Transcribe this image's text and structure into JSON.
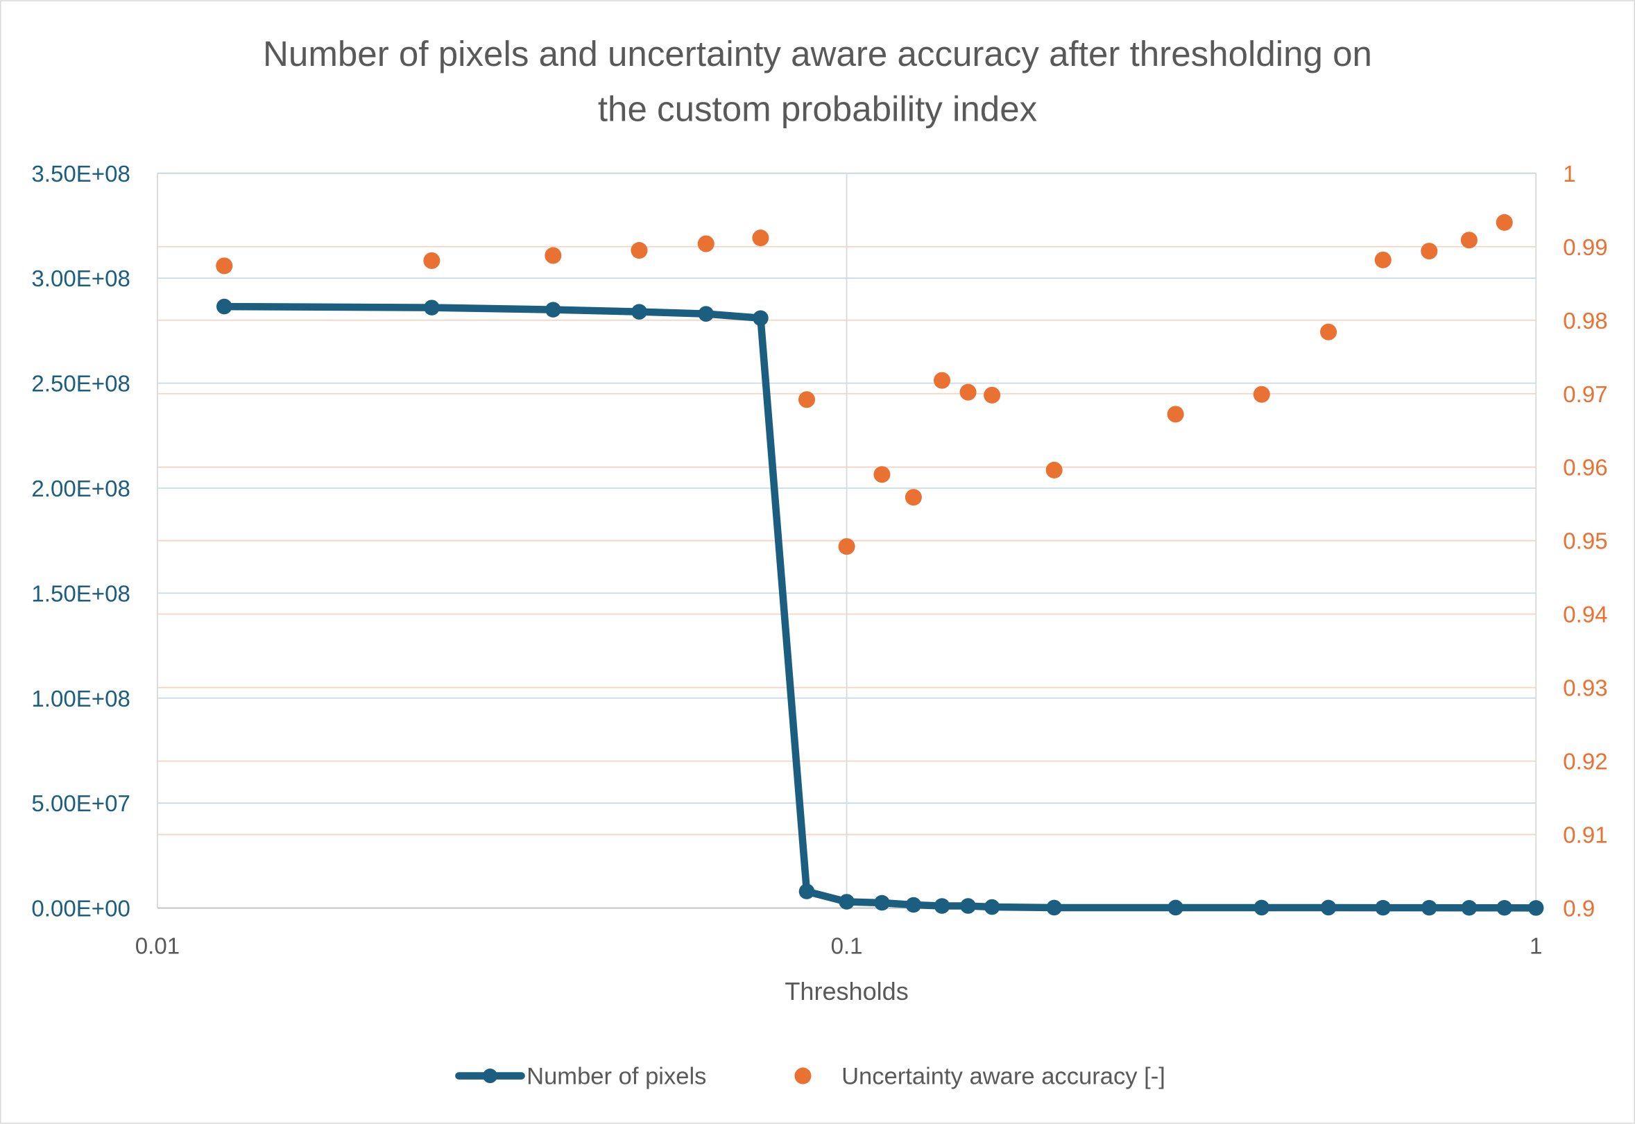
{
  "chart_data": {
    "type": "line",
    "title_lines": [
      "Number of pixels and uncertainty aware accuracy after thresholding on",
      "the custom probability index"
    ],
    "xlabel": "Thresholds",
    "xscale": "log",
    "xlim": [
      0.01,
      1
    ],
    "x_ticks": [
      "0.01",
      "0.1",
      "1"
    ],
    "y_left_lim": [
      0,
      350000000
    ],
    "y_left_ticks": [
      "0.00E+00",
      "5.00E+07",
      "1.00E+08",
      "1.50E+08",
      "2.00E+08",
      "2.50E+08",
      "3.00E+08",
      "3.50E+08"
    ],
    "y_right_lim": [
      0.9,
      1
    ],
    "y_right_ticks": [
      "0.9",
      "0.91",
      "0.92",
      "0.93",
      "0.94",
      "0.95",
      "0.96",
      "0.97",
      "0.98",
      "0.99",
      "1"
    ],
    "grid": true,
    "legend_position": "bottom",
    "x": [
      0.0125,
      0.025,
      0.0375,
      0.05,
      0.0625,
      0.075,
      0.0875,
      0.1,
      0.1125,
      0.125,
      0.1375,
      0.15,
      0.1625,
      0.2,
      0.3,
      0.4,
      0.5,
      0.6,
      0.7,
      0.8,
      0.9,
      1.0
    ],
    "series": [
      {
        "name": "Number of pixels",
        "axis": "left",
        "type": "line-markers",
        "color": "#1b5e7f",
        "values": [
          286500000,
          286000000,
          285000000,
          284000000,
          283000000,
          281000000,
          7900000,
          3000000,
          2500000,
          1500000,
          1000000,
          1000000,
          500000,
          200000,
          200000,
          200000,
          200000,
          150000,
          150000,
          100000,
          100000,
          50000
        ]
      },
      {
        "name": "Uncertainty aware accuracy [-]",
        "axis": "right",
        "type": "scatter",
        "color": "#e97132",
        "values": [
          0.9874,
          0.9881,
          0.9888,
          0.9895,
          0.9904,
          0.9912,
          0.9692,
          0.9492,
          0.959,
          0.9559,
          0.9718,
          0.9702,
          0.9698,
          0.9596,
          0.9672,
          0.9699,
          0.9784,
          0.9882,
          0.9894,
          0.9909,
          0.9933,
          null
        ]
      }
    ]
  }
}
